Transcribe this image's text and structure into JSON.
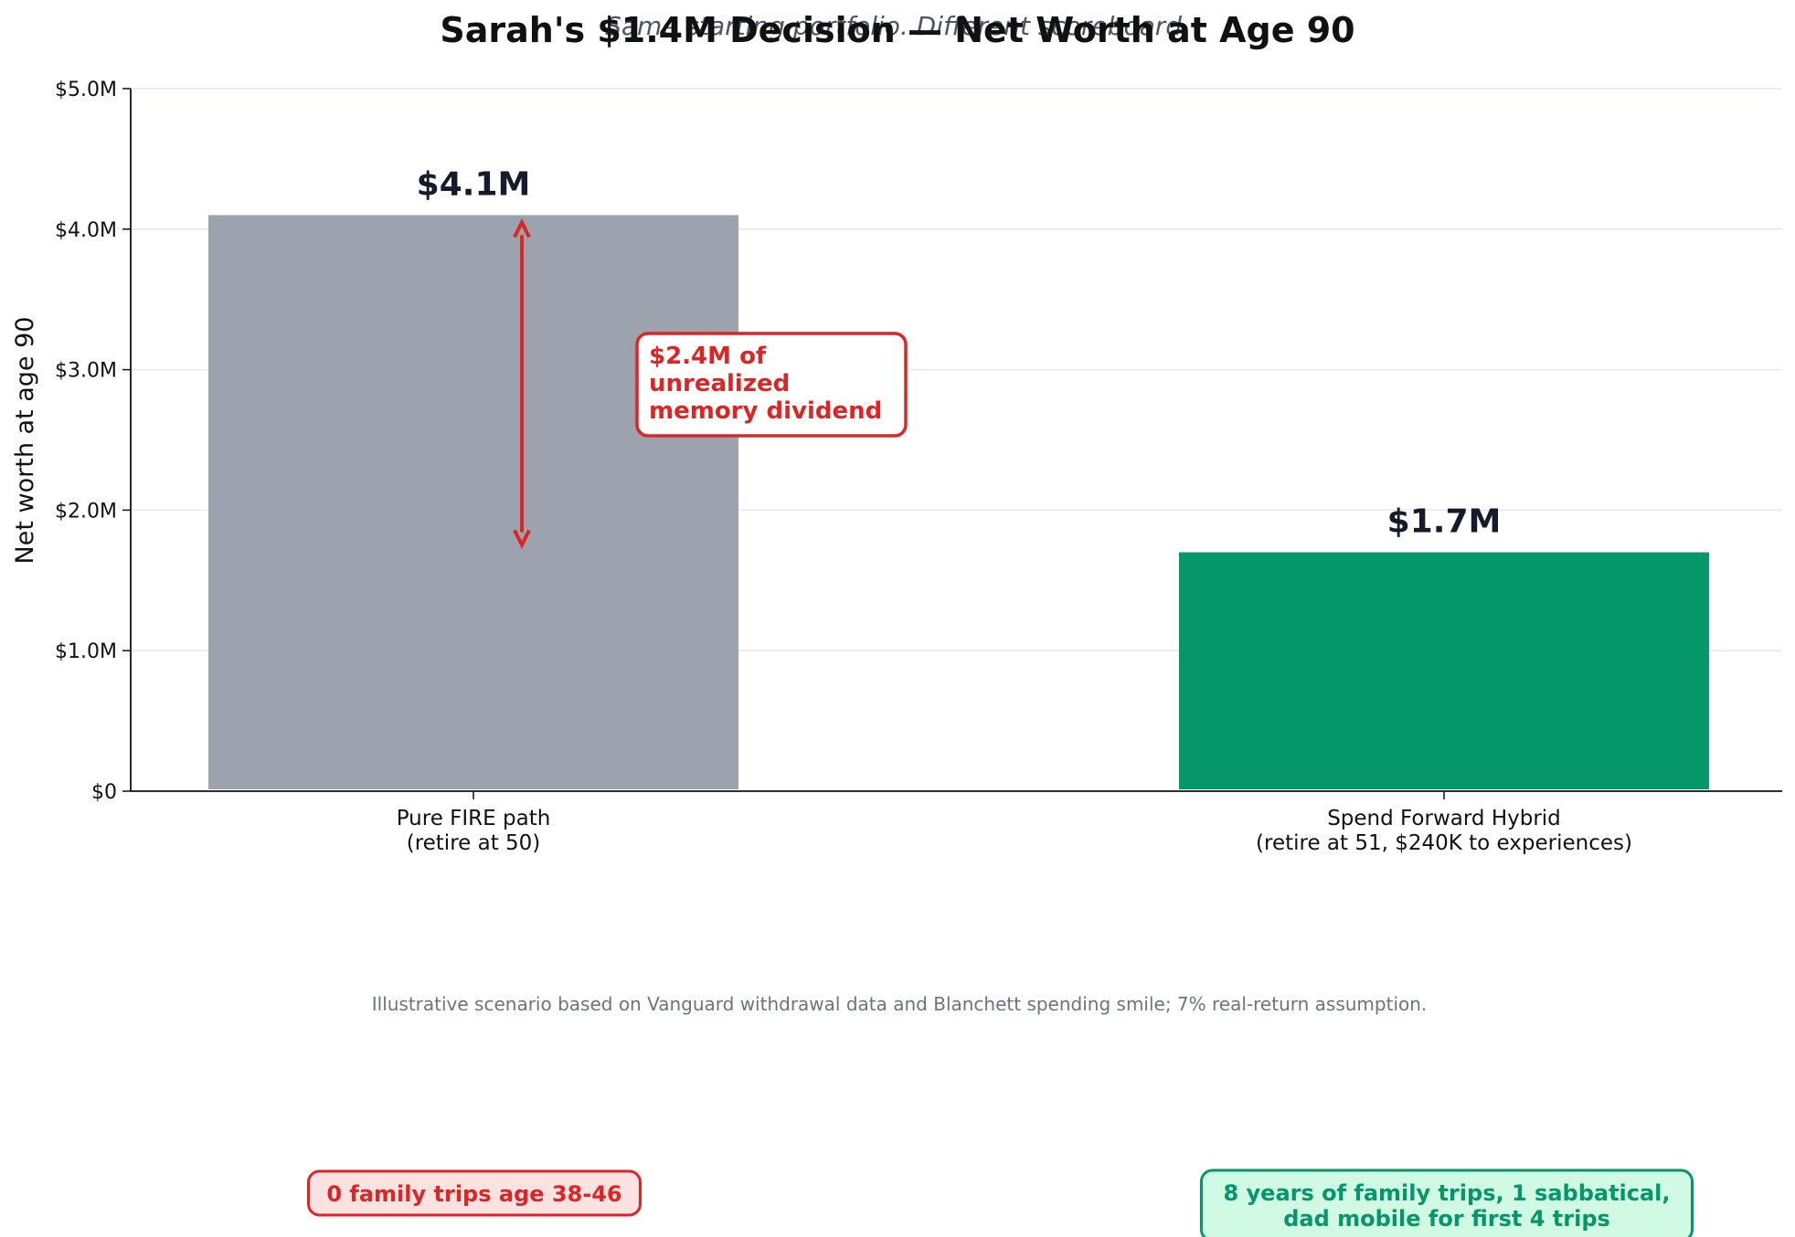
{
  "chart_data": {
    "type": "bar",
    "title": "Sarah's $1.4M Decision — Net Worth at Age 90",
    "subtitle": "Same starting portfolio. Different scoreboard.",
    "ylabel": "Net worth at age 90",
    "xlabel": "",
    "ylim": [
      0,
      5.0
    ],
    "yticks": [
      0,
      1.0,
      2.0,
      3.0,
      4.0,
      5.0
    ],
    "ytick_labels": [
      "$0",
      "$1.0M",
      "$2.0M",
      "$3.0M",
      "$4.0M",
      "$5.0M"
    ],
    "grid": "horizontal",
    "categories": [
      [
        "Pure FIRE path",
        "(retire at 50)"
      ],
      [
        "Spend Forward Hybrid",
        "(retire at 51, $240K to experiences)"
      ]
    ],
    "values": [
      4.1,
      1.7
    ],
    "value_labels": [
      "$4.1M",
      "$1.7M"
    ],
    "colors": [
      "#9ca3ae",
      "#059669"
    ],
    "annotation": {
      "lines": [
        "$2.4M of",
        "unrealized",
        "memory dividend"
      ],
      "from_value": 4.1,
      "to_value": 1.7,
      "color": "#dc2626"
    },
    "footnote": "Illustrative scenario based on Vanguard withdrawal data and Blanchett spending smile; 7% real-return assumption.",
    "badges": [
      {
        "lines": [
          "0 family trips age 38-46"
        ],
        "text_color": "#dc2626",
        "fill": "#fde2e2",
        "border": "#dc2626"
      },
      {
        "lines": [
          "8 years of family trips, 1 sabbatical,",
          "dad mobile for first 4 trips"
        ],
        "text_color": "#059669",
        "fill": "#d1fae5",
        "border": "#059669"
      }
    ]
  }
}
